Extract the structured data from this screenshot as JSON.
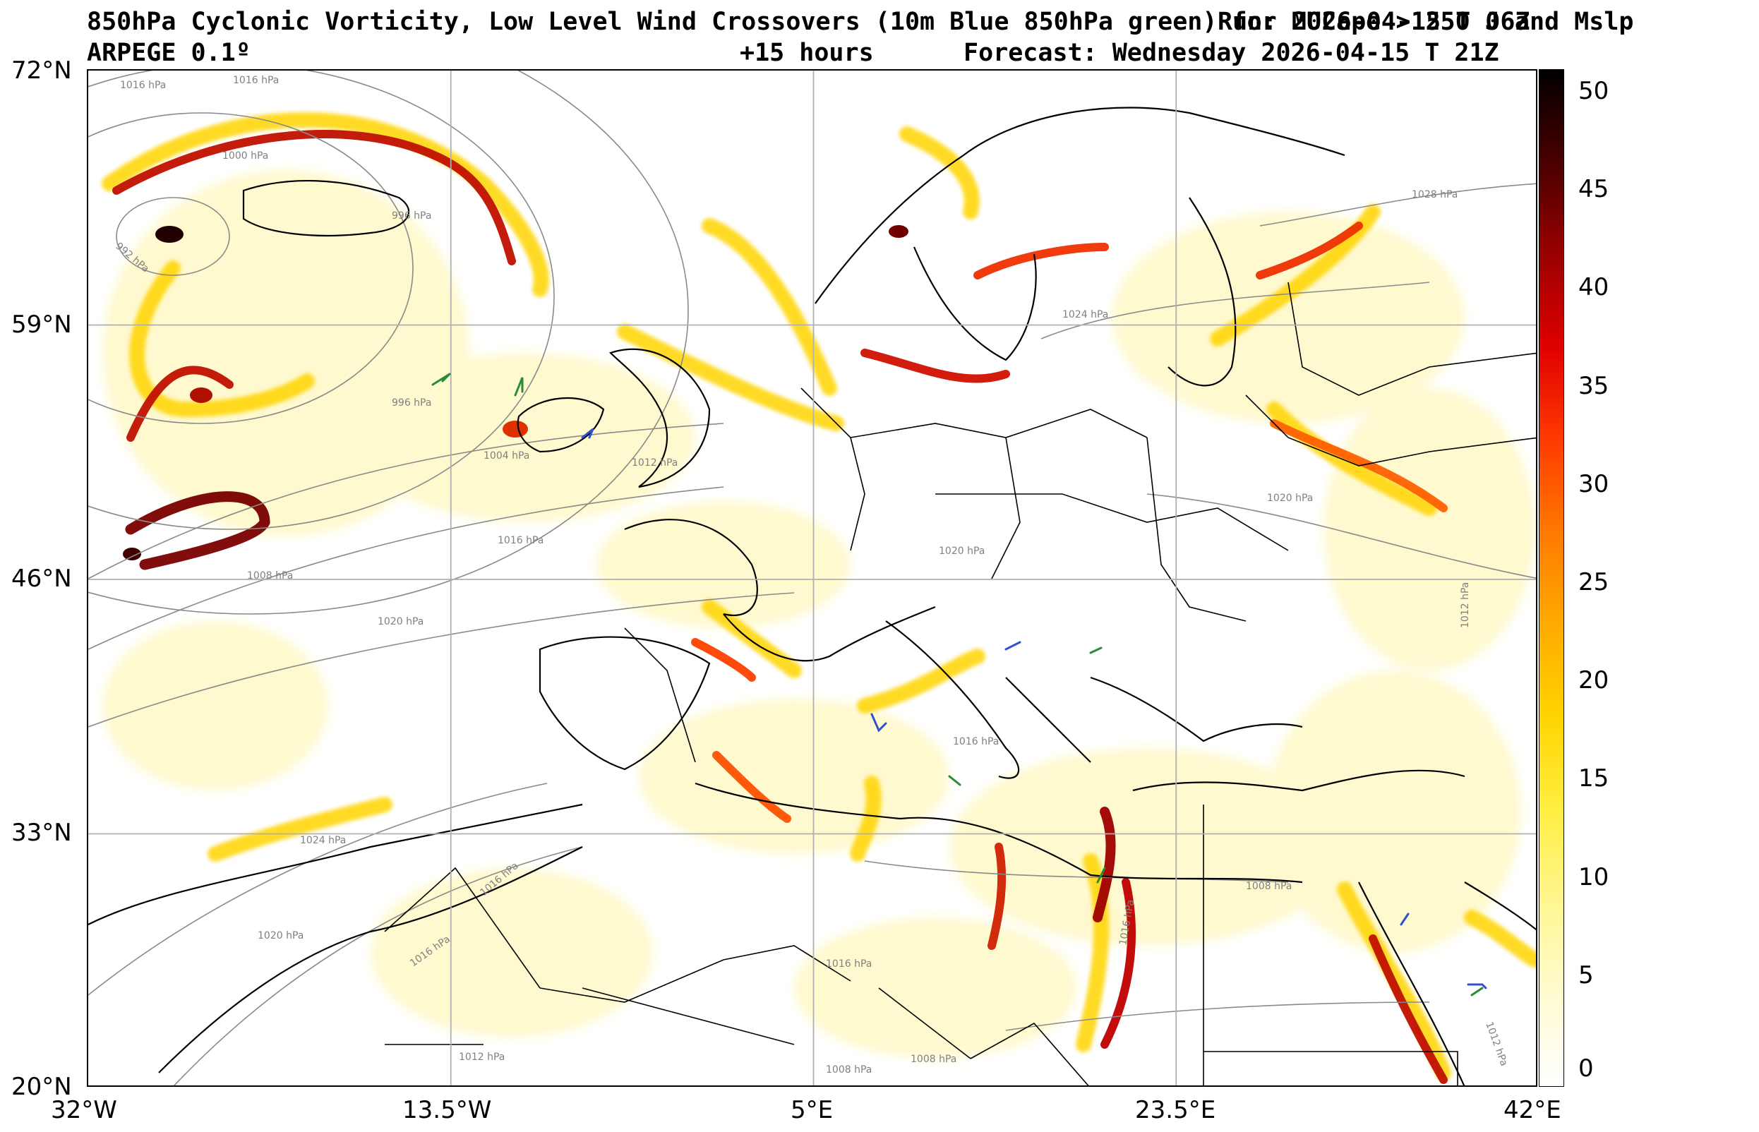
{
  "header": {
    "title": "850hPa Cyclonic Vorticity, Low Level Wind Crossovers (10m Blue 850hPa green) for MUCape > 250 J and Mslp",
    "run": "Run: 2026-04-15 T 06Z",
    "model": "ARPEGE 0.1º",
    "lead": "+15 hours",
    "forecast": "Forecast: Wednesday 2026-04-15 T 21Z"
  },
  "axes": {
    "lat_labels": [
      "72°N",
      "59°N",
      "46°N",
      "33°N",
      "20°N"
    ],
    "lon_labels": [
      "32°W",
      "13.5°W",
      "5°E",
      "23.5°E",
      "42°E"
    ]
  },
  "colorbar": {
    "labels": [
      "50",
      "45",
      "40",
      "35",
      "30",
      "25",
      "20",
      "15",
      "10",
      "5",
      "0"
    ],
    "colors": [
      "#ffffff",
      "#fffbd0",
      "#fff690",
      "#ffee40",
      "#ffd400",
      "#ffaa00",
      "#ff7a00",
      "#ff3a00",
      "#e00000",
      "#9a0000",
      "#4a0000",
      "#000000"
    ]
  },
  "isobars": [
    "1016 hPa",
    "1016 hPa",
    "1000 hPa",
    "996 hPa",
    "992 hPa",
    "996 hPa",
    "1004 hPa",
    "1012 hPa",
    "1016 hPa",
    "1008 hPa",
    "1020 hPa",
    "1024 hPa",
    "1016 hPa",
    "1020 hPa",
    "1016 hPa",
    "1012 hPa",
    "1028 hPa",
    "1024 hPa",
    "1020 hPa",
    "1020 hPa",
    "1016 hPa",
    "1012 hPa",
    "1016 hPa",
    "1008 hPa",
    "1008 hPa",
    "1008 hPa",
    "1016 hPa",
    "1012 hPa"
  ],
  "legend_colors": {
    "wind_10m": "#3050d0",
    "wind_850": "#2a8a3a"
  }
}
